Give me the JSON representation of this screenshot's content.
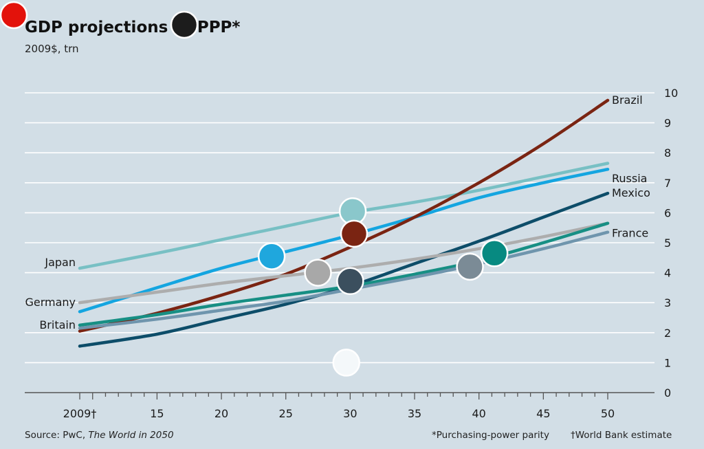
{
  "header": {
    "title": "GDP projections at PPP*",
    "subtitle": "2009$, trn"
  },
  "footer": {
    "source_prefix": "Source: PwC, ",
    "source_italic": "The World in 2050",
    "note_ppp": "*Purchasing-power parity",
    "note_wb": "†World Bank estimate"
  },
  "colors": {
    "background": "#d2dee6",
    "grid": "#ffffff",
    "axis": "#555555",
    "accent_red": "#e3120b",
    "marker_dark": "#1c1c1c"
  },
  "chart_data": {
    "type": "line",
    "title": "GDP projections at PPP*",
    "subtitle": "2009$, trn",
    "xlabel": "",
    "ylabel": "",
    "xlim": [
      2009,
      2050
    ],
    "ylim": [
      0,
      10
    ],
    "grid": true,
    "y_axis_side": "right",
    "x_ticks": [
      {
        "value": 2009,
        "label": "2009†"
      },
      {
        "value": 2015,
        "label": "15"
      },
      {
        "value": 2020,
        "label": "20"
      },
      {
        "value": 2025,
        "label": "25"
      },
      {
        "value": 2030,
        "label": "30"
      },
      {
        "value": 2035,
        "label": "35"
      },
      {
        "value": 2040,
        "label": "40"
      },
      {
        "value": 2045,
        "label": "45"
      },
      {
        "value": 2050,
        "label": "50"
      }
    ],
    "y_ticks": [
      {
        "value": 0,
        "label": "0"
      },
      {
        "value": 1,
        "label": "1"
      },
      {
        "value": 2,
        "label": "2"
      },
      {
        "value": 3,
        "label": "3"
      },
      {
        "value": 4,
        "label": "4"
      },
      {
        "value": 5,
        "label": "5"
      },
      {
        "value": 6,
        "label": "6"
      },
      {
        "value": 7,
        "label": "7"
      },
      {
        "value": 8,
        "label": "8"
      },
      {
        "value": 9,
        "label": "9"
      },
      {
        "value": 10,
        "label": "10"
      }
    ],
    "series": [
      {
        "name": "Japan",
        "color": "#78c0c4",
        "label_side": "left",
        "label_dy": -8,
        "x": [
          2009,
          2015,
          2020,
          2025,
          2030,
          2035,
          2040,
          2045,
          2050
        ],
        "y": [
          4.15,
          4.65,
          5.1,
          5.55,
          6.0,
          6.35,
          6.75,
          7.2,
          7.65
        ]
      },
      {
        "name": "Russia",
        "color": "#14a5e0",
        "label_side": "right",
        "label_dy": 14,
        "x": [
          2009,
          2015,
          2020,
          2025,
          2030,
          2035,
          2040,
          2045,
          2050
        ],
        "y": [
          2.7,
          3.5,
          4.15,
          4.7,
          5.25,
          5.85,
          6.5,
          7.0,
          7.45
        ]
      },
      {
        "name": "Brazil",
        "color": "#7a2412",
        "label_side": "right",
        "label_dy": 0,
        "x": [
          2009,
          2015,
          2020,
          2025,
          2030,
          2035,
          2040,
          2045,
          2050
        ],
        "y": [
          2.05,
          2.65,
          3.25,
          3.95,
          4.85,
          5.85,
          7.0,
          8.3,
          9.75
        ]
      },
      {
        "name": "Mexico",
        "color": "#0d4d69",
        "label_side": "right",
        "label_dy": 0,
        "x": [
          2009,
          2015,
          2020,
          2025,
          2030,
          2035,
          2040,
          2045,
          2050
        ],
        "y": [
          1.55,
          1.95,
          2.45,
          2.95,
          3.55,
          4.3,
          5.05,
          5.85,
          6.65
        ]
      },
      {
        "name": "Germany",
        "color": "#adadad",
        "label_side": "left",
        "label_dy": 0,
        "x": [
          2009,
          2015,
          2020,
          2025,
          2030,
          2035,
          2040,
          2045,
          2050
        ],
        "y": [
          3.0,
          3.35,
          3.65,
          3.9,
          4.15,
          4.45,
          4.8,
          5.2,
          5.65
        ]
      },
      {
        "name": "Britain",
        "color": "#178f84",
        "label_side": "left",
        "label_dy": 0,
        "x": [
          2009,
          2015,
          2020,
          2025,
          2030,
          2035,
          2040,
          2045,
          2050
        ],
        "y": [
          2.25,
          2.6,
          2.95,
          3.25,
          3.55,
          3.95,
          4.4,
          5.0,
          5.65
        ]
      },
      {
        "name": "France",
        "color": "#6f95ad",
        "label_side": "right",
        "label_dy": 2,
        "x": [
          2009,
          2015,
          2020,
          2025,
          2030,
          2035,
          2040,
          2045,
          2050
        ],
        "y": [
          2.15,
          2.45,
          2.75,
          3.05,
          3.45,
          3.85,
          4.3,
          4.8,
          5.35
        ]
      }
    ],
    "markers": [
      {
        "name": "marker-teal-light",
        "color": "#8ac7cb",
        "x": 2030.2,
        "y": 6.05
      },
      {
        "name": "marker-brown",
        "color": "#7a2412",
        "x": 2030.3,
        "y": 5.3
      },
      {
        "name": "marker-blue",
        "color": "#1fa7dd",
        "x": 2023.9,
        "y": 4.55
      },
      {
        "name": "marker-grey",
        "color": "#a8a8a8",
        "x": 2027.5,
        "y": 4.0
      },
      {
        "name": "marker-slate",
        "color": "#3b4f5e",
        "x": 2030.0,
        "y": 3.72
      },
      {
        "name": "marker-steel",
        "color": "#7b8b96",
        "x": 2039.3,
        "y": 4.2
      },
      {
        "name": "marker-teal",
        "color": "#078a81",
        "x": 2041.2,
        "y": 4.65
      },
      {
        "name": "marker-white",
        "color": "#f4f8fa",
        "x": 2029.7,
        "y": 1.0
      }
    ]
  }
}
